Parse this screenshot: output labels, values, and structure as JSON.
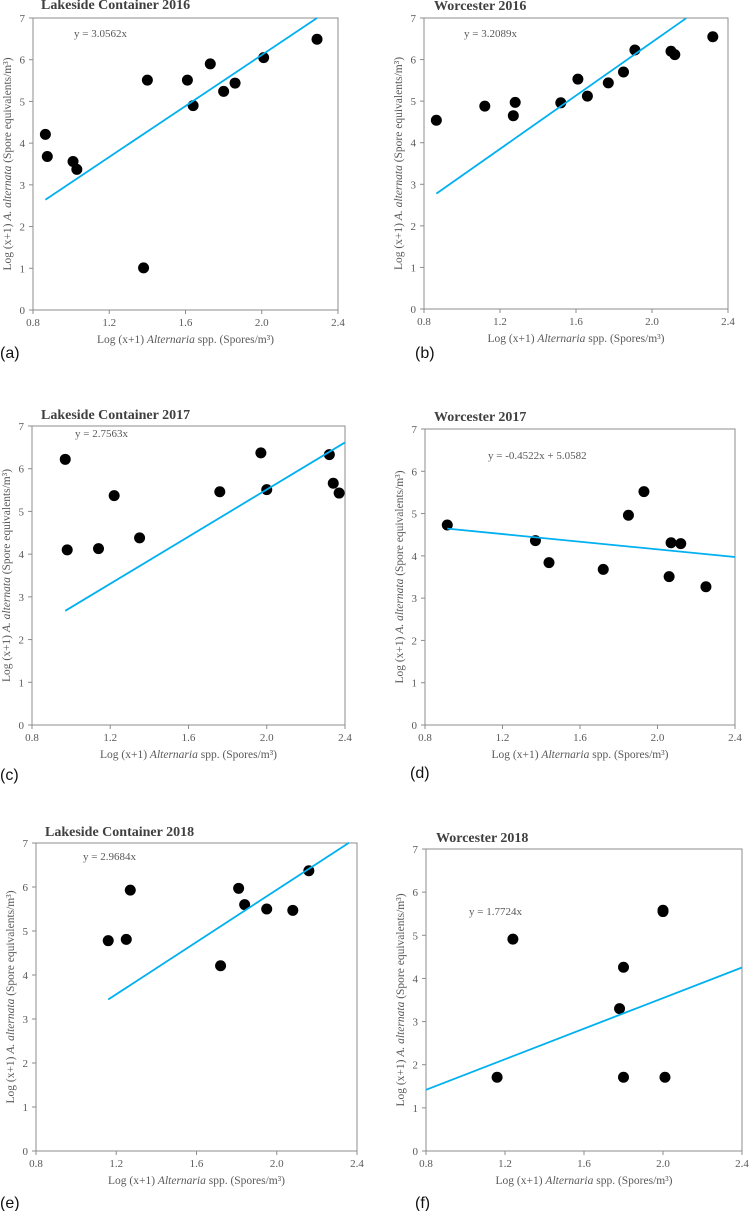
{
  "colors": {
    "trendline": "#00b0f0",
    "points": "#000000",
    "axis": "#8c8c8c"
  },
  "chart_data": [
    {
      "type": "scatter",
      "panel_label": "(a)",
      "title": "Lakeside Container 2016",
      "equation": "y = 3.0562x",
      "slope": 3.0562,
      "intercept": 0,
      "fit_x_range": [
        0.865,
        2.29
      ],
      "xlim": [
        0.8,
        2.4
      ],
      "ylim": [
        0,
        7
      ],
      "xticks": [
        "0.8",
        "1.2",
        "1.6",
        "2.0",
        "2.4"
      ],
      "yticks": [
        "0",
        "1",
        "2",
        "3",
        "4",
        "5",
        "6",
        "7"
      ],
      "xlabel": {
        "pre": "Log (x+1) ",
        "ital": "Alternaria",
        "post": " spp. (Spores/m³)"
      },
      "ylabel": {
        "pre": "Log (x+1) ",
        "ital": "A. alternata",
        "post": " (Spore equivalents/m³)"
      },
      "points": [
        [
          0.865,
          4.21
        ],
        [
          0.875,
          3.68
        ],
        [
          1.01,
          3.56
        ],
        [
          1.03,
          3.37
        ],
        [
          1.38,
          1.01
        ],
        [
          1.4,
          5.51
        ],
        [
          1.61,
          5.51
        ],
        [
          1.64,
          4.9
        ],
        [
          1.73,
          5.9
        ],
        [
          1.8,
          5.24
        ],
        [
          1.86,
          5.44
        ],
        [
          2.01,
          6.05
        ],
        [
          2.29,
          6.49
        ]
      ]
    },
    {
      "type": "scatter",
      "panel_label": "(b)",
      "title": "Worcester 2016",
      "equation": "y = 3.2089x",
      "slope": 3.2089,
      "intercept": 0,
      "fit_x_range": [
        0.865,
        2.18
      ],
      "xlim": [
        0.8,
        2.4
      ],
      "ylim": [
        0,
        7
      ],
      "xticks": [
        "0.8",
        "1.2",
        "1.6",
        "2.0",
        "2.4"
      ],
      "yticks": [
        "0",
        "1",
        "2",
        "3",
        "4",
        "5",
        "6",
        "7"
      ],
      "xlabel": {
        "pre": "Log (x+1) ",
        "ital": "Alternaria",
        "post": " spp. (Spores/m³)"
      },
      "ylabel": {
        "pre": "Log (x+1) ",
        "ital": "A. alternata",
        "post": " (Spore equivalents/m³)"
      },
      "points": [
        [
          0.865,
          4.54
        ],
        [
          1.12,
          4.88
        ],
        [
          1.27,
          4.65
        ],
        [
          1.28,
          4.97
        ],
        [
          1.52,
          4.96
        ],
        [
          1.61,
          5.53
        ],
        [
          1.66,
          5.12
        ],
        [
          1.77,
          5.44
        ],
        [
          1.85,
          5.7
        ],
        [
          1.91,
          6.23
        ],
        [
          2.1,
          6.2
        ],
        [
          2.12,
          6.12
        ],
        [
          2.32,
          6.55
        ]
      ]
    },
    {
      "type": "scatter",
      "panel_label": "(c)",
      "title": "Lakeside Container 2017",
      "equation": "y = 2.7563x",
      "slope": 2.7563,
      "intercept": 0,
      "fit_x_range": [
        0.97,
        2.4
      ],
      "xlim": [
        0.8,
        2.4
      ],
      "ylim": [
        0,
        7
      ],
      "xticks": [
        "0.8",
        "1.2",
        "1.6",
        "2.0",
        "2.4"
      ],
      "yticks": [
        "0",
        "1",
        "2",
        "3",
        "4",
        "5",
        "6",
        "7"
      ],
      "xlabel": {
        "pre": "Log (x+1) ",
        "ital": "Alternaria",
        "post": " spp. (Spores/m³)"
      },
      "ylabel": {
        "pre": "Log (x+1) ",
        "ital": "A. alternata",
        "post": " (Spore equivalents/m³)"
      },
      "points": [
        [
          0.97,
          6.22
        ],
        [
          0.98,
          4.1
        ],
        [
          1.14,
          4.13
        ],
        [
          1.22,
          5.37
        ],
        [
          1.35,
          4.38
        ],
        [
          1.76,
          5.46
        ],
        [
          1.97,
          6.37
        ],
        [
          2.0,
          5.51
        ],
        [
          2.32,
          6.33
        ],
        [
          2.34,
          5.66
        ],
        [
          2.37,
          5.43
        ]
      ]
    },
    {
      "type": "scatter",
      "panel_label": "(d)",
      "title": "Worcester 2017",
      "equation": "y = -0.4522x + 5.0582",
      "slope": -0.4522,
      "intercept": 5.0582,
      "fit_x_range": [
        0.915,
        2.4
      ],
      "xlim": [
        0.8,
        2.4
      ],
      "ylim": [
        0,
        7
      ],
      "xticks": [
        "0.8",
        "1.2",
        "1.6",
        "2.0",
        "2.4"
      ],
      "yticks": [
        "0",
        "1",
        "2",
        "3",
        "4",
        "5",
        "6",
        "7"
      ],
      "xlabel": {
        "pre": "Log (x+1) ",
        "ital": "Alternaria",
        "post": " spp. (Spores/m³)"
      },
      "ylabel": {
        "pre": "Log (x+1) ",
        "ital": "A. alternata",
        "post": " (Spore equivalents/m³)"
      },
      "points": [
        [
          0.915,
          4.73
        ],
        [
          1.37,
          4.36
        ],
        [
          1.44,
          3.84
        ],
        [
          1.72,
          3.68
        ],
        [
          1.85,
          4.96
        ],
        [
          1.93,
          5.52
        ],
        [
          2.06,
          3.51
        ],
        [
          2.07,
          4.31
        ],
        [
          2.12,
          4.29
        ],
        [
          2.25,
          3.27
        ]
      ]
    },
    {
      "type": "scatter",
      "panel_label": "(e)",
      "title": "Lakeside Container 2018",
      "equation": "y = 2.9684x",
      "slope": 2.9684,
      "intercept": 0,
      "fit_x_range": [
        1.16,
        2.36
      ],
      "xlim": [
        0.8,
        2.4
      ],
      "ylim": [
        0,
        7
      ],
      "xticks": [
        "0.8",
        "1.2",
        "1.6",
        "2.0",
        "2.4"
      ],
      "yticks": [
        "0",
        "1",
        "2",
        "3",
        "4",
        "5",
        "6",
        "7"
      ],
      "xlabel": {
        "pre": "Log (x+1) ",
        "ital": "Alternaria",
        "post": " spp. (Spores/m³)"
      },
      "ylabel": {
        "pre": "Log (x+1) ",
        "ital": "A. alternata",
        "post": " (Spore equivalents/m³)"
      },
      "points": [
        [
          1.16,
          4.78
        ],
        [
          1.25,
          4.81
        ],
        [
          1.27,
          5.93
        ],
        [
          1.72,
          4.21
        ],
        [
          1.81,
          5.97
        ],
        [
          1.84,
          5.6
        ],
        [
          1.95,
          5.5
        ],
        [
          2.08,
          5.47
        ],
        [
          2.16,
          6.37
        ]
      ]
    },
    {
      "type": "scatter",
      "panel_label": "(f)",
      "title": "Worcester 2018",
      "equation": "y = 1.7724x",
      "slope": 1.7724,
      "intercept": 0,
      "fit_x_range": [
        0.8,
        2.4
      ],
      "xlim": [
        0.8,
        2.4
      ],
      "ylim": [
        0,
        7
      ],
      "xticks": [
        "0.8",
        "1.2",
        "1.6",
        "2.0",
        "2.4"
      ],
      "yticks": [
        "0",
        "1",
        "2",
        "3",
        "4",
        "5",
        "6",
        "7"
      ],
      "xlabel": {
        "pre": "Log (x+1) ",
        "ital": "Alternaria",
        "post": " spp. (Spores/m³)"
      },
      "ylabel": {
        "pre": "Log (x+1) ",
        "ital": "A. alternata",
        "post": " (Spore equivalents/m³)"
      },
      "points": [
        [
          1.16,
          1.71
        ],
        [
          1.24,
          4.91
        ],
        [
          1.78,
          3.3
        ],
        [
          1.8,
          1.71
        ],
        [
          1.8,
          4.26
        ],
        [
          2.0,
          5.58
        ],
        [
          2.0,
          5.55
        ],
        [
          2.01,
          1.71
        ]
      ]
    }
  ]
}
